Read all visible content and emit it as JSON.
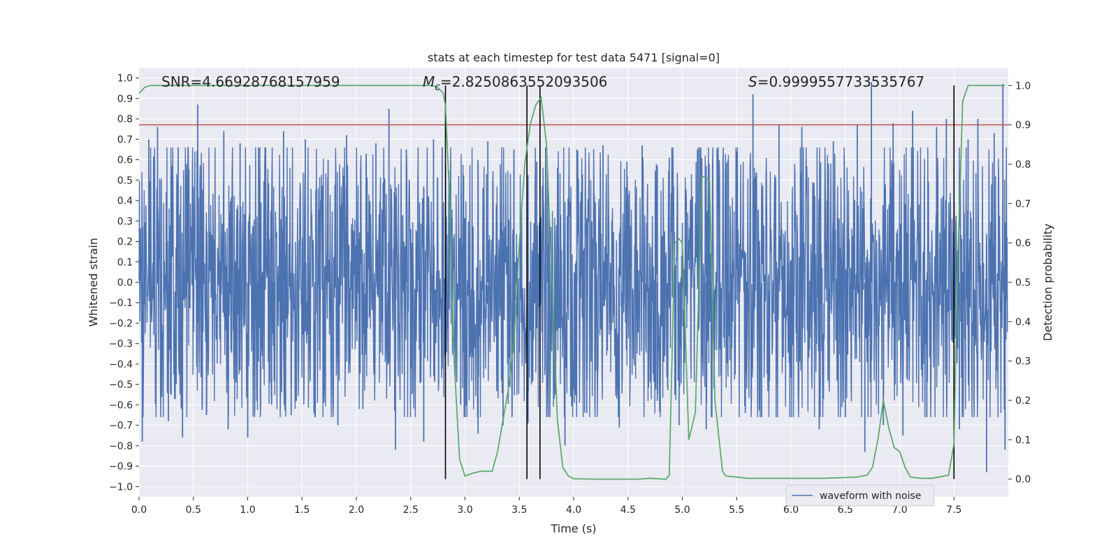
{
  "chart_data": {
    "type": "line",
    "title": "stats at each timestep for test data 5471 [signal=0]",
    "xlabel": "Time (s)",
    "ylabel_left": "Whitened strain",
    "ylabel_right": "Detection probability",
    "xlim": [
      0,
      8
    ],
    "ylim_left": [
      -1.05,
      1.05
    ],
    "ylim_right": [
      -0.045,
      1.045
    ],
    "x_ticks": [
      0.0,
      0.5,
      1.0,
      1.5,
      2.0,
      2.5,
      3.0,
      3.5,
      4.0,
      4.5,
      5.0,
      5.5,
      6.0,
      6.5,
      7.0,
      7.5
    ],
    "x_tick_labels": [
      "0.0",
      "0.5",
      "1.0",
      "1.5",
      "2.0",
      "2.5",
      "3.0",
      "3.5",
      "4.0",
      "4.5",
      "5.0",
      "5.5",
      "6.0",
      "6.5",
      "7.0",
      "7.5"
    ],
    "y_left_ticks": [
      1.0,
      0.9,
      0.8,
      0.7,
      0.6,
      0.5,
      0.4,
      0.3,
      0.2,
      0.1,
      0.0,
      -0.1,
      -0.2,
      -0.3,
      -0.4,
      -0.5,
      -0.6,
      -0.7,
      -0.8,
      -0.9,
      -1.0
    ],
    "y_left_tick_labels": [
      "1.0",
      "0.9",
      "0.8",
      "0.7",
      "0.6",
      "0.5",
      "0.4",
      "0.3",
      "0.2",
      "0.1",
      "0.0",
      "−0.1",
      "−0.2",
      "−0.3",
      "−0.4",
      "−0.5",
      "−0.6",
      "−0.7",
      "−0.8",
      "−0.9",
      "−1.0"
    ],
    "y_right_ticks": [
      1.0,
      0.9,
      0.8,
      0.7,
      0.6,
      0.5,
      0.4,
      0.3,
      0.2,
      0.1,
      0.0
    ],
    "y_right_tick_labels": [
      "1.0",
      "0.9",
      "0.8",
      "0.7",
      "0.6",
      "0.5",
      "0.4",
      "0.3",
      "0.2",
      "0.1",
      "0.0"
    ],
    "annotations": {
      "snr": "SNR=4.66928768157959",
      "mc_symbol": "M",
      "mc_subscript": "c",
      "mc_value": "=2.8250863552093506",
      "s_symbol": "S",
      "s_value": "=0.9999557733535767"
    },
    "threshold_line": {
      "axis": "right",
      "value": 0.9,
      "color": "#c44e52"
    },
    "vertical_lines": [
      2.82,
      3.57,
      3.69,
      7.5
    ],
    "series": [
      {
        "name": "waveform with noise",
        "axis": "left",
        "color": "#4c72b0",
        "envelope_description": "dense noise, amplitude ~0.45 typical with spikes to ~0.87",
        "spikes": [
          [
            0.03,
            -0.78
          ],
          [
            0.09,
            0.7
          ],
          [
            0.17,
            0.76
          ],
          [
            0.27,
            -0.68
          ],
          [
            0.36,
            0.66
          ],
          [
            0.4,
            -0.76
          ],
          [
            0.45,
            0.6
          ],
          [
            0.54,
            0.87
          ],
          [
            0.62,
            -0.65
          ],
          [
            0.78,
            0.74
          ],
          [
            0.82,
            -0.72
          ],
          [
            0.93,
            0.68
          ],
          [
            1.0,
            -0.76
          ],
          [
            1.1,
            0.66
          ],
          [
            1.22,
            -0.6
          ],
          [
            1.33,
            0.74
          ],
          [
            1.4,
            -0.65
          ],
          [
            1.53,
            0.7
          ],
          [
            1.62,
            -0.66
          ],
          [
            1.74,
            0.6
          ],
          [
            1.83,
            -0.7
          ],
          [
            1.91,
            0.72
          ],
          [
            2.06,
            -0.62
          ],
          [
            2.18,
            0.68
          ],
          [
            2.3,
            0.85
          ],
          [
            2.36,
            -0.82
          ],
          [
            2.46,
            0.65
          ],
          [
            2.62,
            -0.78
          ],
          [
            2.71,
            0.7
          ],
          [
            2.79,
            0.66
          ],
          [
            2.96,
            -0.6
          ],
          [
            3.12,
            -0.74
          ],
          [
            3.21,
            0.69
          ],
          [
            3.35,
            -0.7
          ],
          [
            3.45,
            0.65
          ],
          [
            3.58,
            -0.69
          ],
          [
            3.66,
            0.59
          ],
          [
            3.76,
            0.55
          ],
          [
            3.92,
            -0.8
          ],
          [
            4.03,
            0.65
          ],
          [
            4.12,
            -0.64
          ],
          [
            4.27,
            0.67
          ],
          [
            4.42,
            -0.71
          ],
          [
            4.49,
            0.59
          ],
          [
            4.63,
            0.67
          ],
          [
            4.77,
            -0.58
          ],
          [
            4.88,
            0.61
          ],
          [
            4.97,
            -0.7
          ],
          [
            5.14,
            0.65
          ],
          [
            5.22,
            -0.72
          ],
          [
            5.32,
            0.65
          ],
          [
            5.42,
            0.6
          ],
          [
            5.58,
            -0.64
          ],
          [
            5.65,
            0.92
          ],
          [
            5.73,
            -0.66
          ],
          [
            5.89,
            0.77
          ],
          [
            5.99,
            -0.66
          ],
          [
            6.1,
            0.76
          ],
          [
            6.26,
            -0.72
          ],
          [
            6.39,
            0.69
          ],
          [
            6.5,
            -0.66
          ],
          [
            6.61,
            0.77
          ],
          [
            6.68,
            -0.83
          ],
          [
            6.74,
            0.98
          ],
          [
            6.85,
            -0.7
          ],
          [
            6.94,
            0.78
          ],
          [
            7.03,
            -0.75
          ],
          [
            7.12,
            0.84
          ],
          [
            7.25,
            -0.66
          ],
          [
            7.34,
            0.76
          ],
          [
            7.43,
            0.8
          ],
          [
            7.55,
            -0.72
          ],
          [
            7.63,
            0.7
          ],
          [
            7.72,
            0.8
          ],
          [
            7.8,
            -0.93
          ],
          [
            7.87,
            0.73
          ],
          [
            7.95,
            0.97
          ],
          [
            7.97,
            -0.82
          ]
        ]
      },
      {
        "name": "detection probability",
        "axis": "right",
        "color": "#55a868",
        "x": [
          0.0,
          0.05,
          0.1,
          0.2,
          0.5,
          1.0,
          1.5,
          2.0,
          2.5,
          2.7,
          2.75,
          2.8,
          2.82,
          2.86,
          2.9,
          2.95,
          3.0,
          3.07,
          3.15,
          3.25,
          3.3,
          3.35,
          3.4,
          3.45,
          3.5,
          3.55,
          3.6,
          3.65,
          3.7,
          3.75,
          3.8,
          3.85,
          3.9,
          3.95,
          4.0,
          4.2,
          4.5,
          4.6,
          4.7,
          4.85,
          4.88,
          4.93,
          4.97,
          5.0,
          5.06,
          5.12,
          5.18,
          5.25,
          5.3,
          5.37,
          5.4,
          5.6,
          6.0,
          6.3,
          6.6,
          6.7,
          6.75,
          6.8,
          6.85,
          6.9,
          6.95,
          7.0,
          7.05,
          7.1,
          7.2,
          7.3,
          7.45,
          7.5,
          7.53,
          7.58,
          7.63,
          7.8,
          7.97
        ],
        "values": [
          0.98,
          0.995,
          1.0,
          1.0,
          1.0,
          1.0,
          1.0,
          1.0,
          1.0,
          1.0,
          0.995,
          0.98,
          0.95,
          0.7,
          0.3,
          0.05,
          0.008,
          0.015,
          0.02,
          0.02,
          0.07,
          0.15,
          0.23,
          0.35,
          0.6,
          0.8,
          0.9,
          0.95,
          0.97,
          0.85,
          0.5,
          0.15,
          0.03,
          0.008,
          0.001,
          0.0,
          0.0,
          0.0,
          0.002,
          0.0,
          0.01,
          0.6,
          0.61,
          0.6,
          0.1,
          0.17,
          0.77,
          0.76,
          0.2,
          0.02,
          0.008,
          0.002,
          0.002,
          0.002,
          0.005,
          0.01,
          0.03,
          0.1,
          0.2,
          0.13,
          0.08,
          0.07,
          0.03,
          0.005,
          0.002,
          0.002,
          0.01,
          0.09,
          0.5,
          0.96,
          1.0,
          1.0,
          1.0
        ]
      }
    ],
    "legend": {
      "position": "lower-right",
      "entries": [
        "waveform with noise"
      ]
    }
  }
}
